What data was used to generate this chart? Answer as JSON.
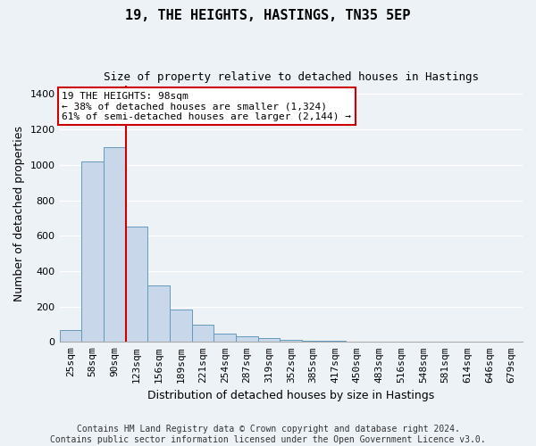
{
  "title": "19, THE HEIGHTS, HASTINGS, TN35 5EP",
  "subtitle": "Size of property relative to detached houses in Hastings",
  "xlabel": "Distribution of detached houses by size in Hastings",
  "ylabel": "Number of detached properties",
  "bar_color": "#c8d8ea",
  "bar_edge_color": "#6699bb",
  "bin_labels": [
    "25sqm",
    "58sqm",
    "90sqm",
    "123sqm",
    "156sqm",
    "189sqm",
    "221sqm",
    "254sqm",
    "287sqm",
    "319sqm",
    "352sqm",
    "385sqm",
    "417sqm",
    "450sqm",
    "483sqm",
    "516sqm",
    "548sqm",
    "581sqm",
    "614sqm",
    "646sqm",
    "679sqm"
  ],
  "bin_values": [
    65,
    1020,
    1100,
    650,
    320,
    185,
    95,
    45,
    30,
    20,
    12,
    8,
    5,
    3,
    3,
    2,
    2,
    2,
    1,
    1,
    1
  ],
  "vline_color": "#cc0000",
  "annotation_line1": "19 THE HEIGHTS: 98sqm",
  "annotation_line2": "← 38% of detached houses are smaller (1,324)",
  "annotation_line3": "61% of semi-detached houses are larger (2,144) →",
  "annotation_box_facecolor": "#ffffff",
  "annotation_box_edgecolor": "#cc0000",
  "ylim": [
    0,
    1450
  ],
  "yticks": [
    0,
    200,
    400,
    600,
    800,
    1000,
    1200,
    1400
  ],
  "footer_text": "Contains HM Land Registry data © Crown copyright and database right 2024.\nContains public sector information licensed under the Open Government Licence v3.0.",
  "background_color": "#edf2f7",
  "plot_background_color": "#edf2f7",
  "title_fontsize": 11,
  "subtitle_fontsize": 9,
  "xlabel_fontsize": 9,
  "ylabel_fontsize": 9,
  "tick_fontsize": 8,
  "annotation_fontsize": 8,
  "footer_fontsize": 7
}
